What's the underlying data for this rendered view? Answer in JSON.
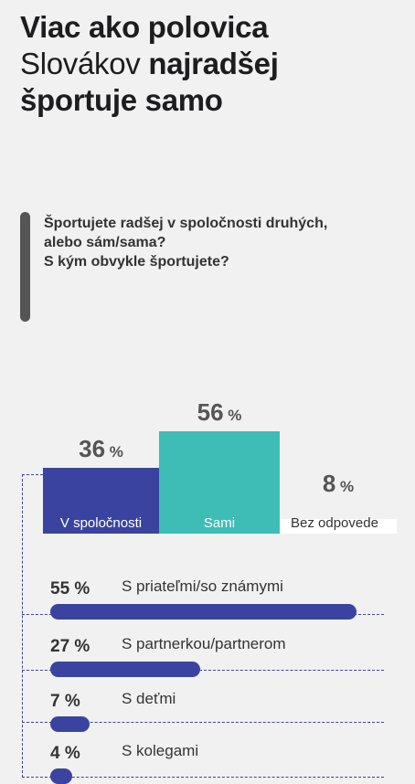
{
  "headline": {
    "line1": "Viac ako polovica",
    "line2_normal": "Slovákov",
    "line2_bold": "najradšej",
    "line3": "športuje samo"
  },
  "question": {
    "line1": "Športujete radšej v spoločnosti druhých,",
    "line2": "alebo sám/sama?",
    "line3": "S kým obvykle športujete?"
  },
  "colors": {
    "blue": "#3a44a0",
    "teal": "#3dbdb5",
    "white": "#ffffff",
    "text": "#333333"
  },
  "chart_data": [
    {
      "type": "bar",
      "categories": [
        "V spoločnosti",
        "Sami",
        "Bez odpovede"
      ],
      "values": [
        36,
        56,
        8
      ],
      "value_labels": [
        "36",
        "56",
        "8"
      ],
      "unit": "%"
    },
    {
      "type": "bar",
      "orientation": "horizontal",
      "categories": [
        "S priateľmi/so známymi",
        "S partnerkou/partnerom",
        "S deťmi",
        "S kolegami"
      ],
      "values": [
        55,
        27,
        7,
        4
      ],
      "value_labels": [
        "55 %",
        "27 %",
        "7 %",
        "4 %"
      ]
    }
  ]
}
